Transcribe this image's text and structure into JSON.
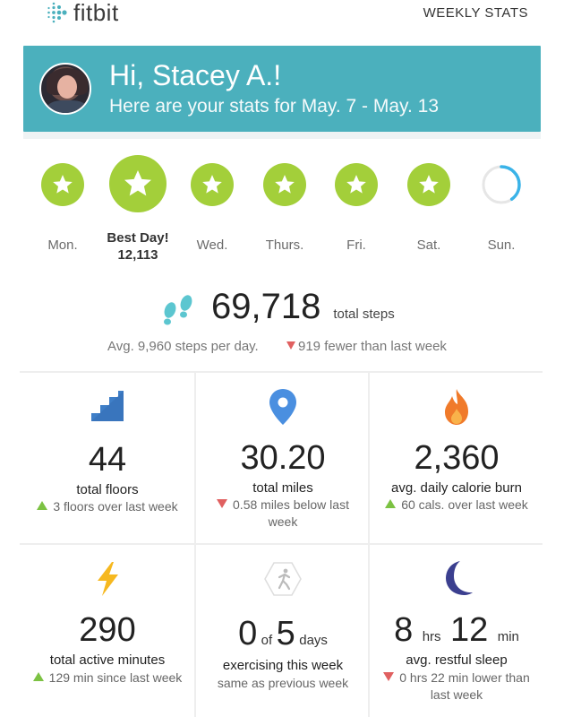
{
  "header": {
    "brand": "fitbit",
    "weekly_stats": "WEEKLY STATS"
  },
  "banner": {
    "greeting": "Hi, Stacey A.!",
    "subtitle": "Here are your stats for May. 7 - May. 13"
  },
  "days": [
    {
      "label": "Mon.",
      "status": "star"
    },
    {
      "label": "Best Day!",
      "value": "12,113",
      "status": "star-best"
    },
    {
      "label": "Wed.",
      "status": "star"
    },
    {
      "label": "Thurs.",
      "status": "star"
    },
    {
      "label": "Fri.",
      "status": "star"
    },
    {
      "label": "Sat.",
      "status": "star"
    },
    {
      "label": "Sun.",
      "status": "progress",
      "progress": 0.4
    }
  ],
  "steps": {
    "total": "69,718",
    "label": "total steps",
    "avg": "Avg. 9,960 steps per day.",
    "change": "919 fewer than last week"
  },
  "stats": {
    "floors": {
      "value": "44",
      "title": "total floors",
      "change": "3 floors over last week"
    },
    "miles": {
      "value": "30.20",
      "title": "total miles",
      "change": "0.58 miles below last week"
    },
    "calories": {
      "value": "2,360",
      "title": "avg. daily calorie burn",
      "change": "60 cals. over last week"
    },
    "active": {
      "value": "290",
      "title": "total active minutes",
      "change": "129 min since last week"
    },
    "exercise": {
      "count": "0",
      "of": "of",
      "goal": "5",
      "unit": "days",
      "title": "exercising this week",
      "change": "same as previous week"
    },
    "sleep": {
      "hours": "8",
      "hrs": "hrs",
      "minutes": "12",
      "min": "min",
      "title": "avg. restful sleep",
      "change": "0 hrs 22 min lower than last week"
    }
  },
  "colors": {
    "accent": "#4bb0bd",
    "star": "#a3cf3a",
    "up": "#7cc243",
    "down": "#e06060"
  }
}
